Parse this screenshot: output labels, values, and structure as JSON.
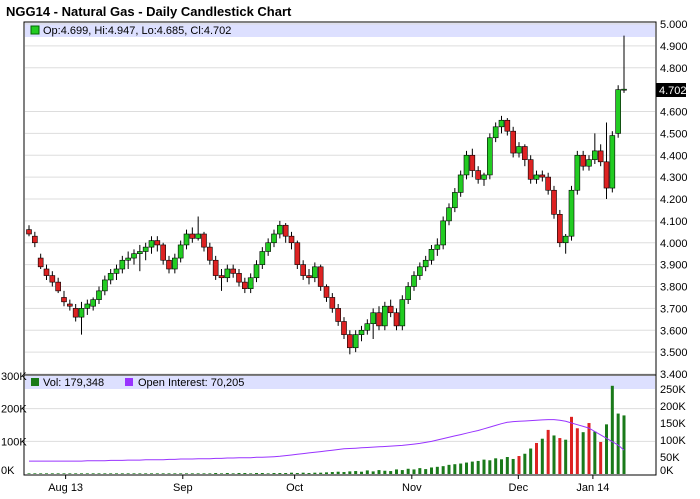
{
  "title": "NGG14 - Natural Gas - Daily Candlestick Chart",
  "price_legend": "Op:4.699, Hi:4.947, Lo:4.685, Cl:4.702",
  "last_price_label": "4.702",
  "volume_legend": "Vol: 179,348",
  "oi_legend": "Open Interest: 70,205",
  "colors": {
    "up": "#22cc22",
    "down": "#dd2222",
    "volume_up": "#1a7a1a",
    "open_interest": "#9933ff",
    "legend_band": "#dde0ff",
    "grid": "#dddddd"
  },
  "chart_data": [
    {
      "type": "candlestick",
      "title": "NGG14 - Natural Gas - Daily Candlestick Chart",
      "yticks": [
        "5.000",
        "4.900",
        "4.800",
        "4.702",
        "4.600",
        "4.500",
        "4.400",
        "4.300",
        "4.200",
        "4.100",
        "4.000",
        "3.900",
        "3.800",
        "3.700",
        "3.600",
        "3.500",
        "3.400"
      ],
      "ylim": [
        3.4,
        5.0
      ],
      "x_months": [
        "Aug 13",
        "Sep",
        "Oct",
        "Nov",
        "Dec",
        "Jan 14"
      ],
      "last": {
        "open": 4.699,
        "high": 4.947,
        "low": 4.685,
        "close": 4.702
      },
      "ohlc": [
        [
          4.06,
          4.08,
          4.03,
          4.04
        ],
        [
          4.03,
          4.05,
          3.98,
          4.0
        ],
        [
          3.93,
          3.95,
          3.88,
          3.89
        ],
        [
          3.88,
          3.9,
          3.83,
          3.85
        ],
        [
          3.85,
          3.87,
          3.8,
          3.82
        ],
        [
          3.82,
          3.84,
          3.77,
          3.78
        ],
        [
          3.75,
          3.78,
          3.71,
          3.73
        ],
        [
          3.72,
          3.74,
          3.69,
          3.71
        ],
        [
          3.7,
          3.72,
          3.64,
          3.66
        ],
        [
          3.66,
          3.73,
          3.58,
          3.7
        ],
        [
          3.7,
          3.74,
          3.67,
          3.72
        ],
        [
          3.71,
          3.75,
          3.69,
          3.74
        ],
        [
          3.74,
          3.8,
          3.72,
          3.78
        ],
        [
          3.78,
          3.85,
          3.76,
          3.83
        ],
        [
          3.83,
          3.88,
          3.81,
          3.86
        ],
        [
          3.86,
          3.9,
          3.83,
          3.88
        ],
        [
          3.88,
          3.94,
          3.86,
          3.92
        ],
        [
          3.92,
          3.96,
          3.88,
          3.93
        ],
        [
          3.93,
          3.97,
          3.9,
          3.95
        ],
        [
          3.95,
          3.99,
          3.87,
          3.96
        ],
        [
          3.96,
          4.0,
          3.92,
          3.98
        ],
        [
          3.98,
          4.03,
          3.95,
          4.01
        ],
        [
          4.01,
          4.03,
          3.96,
          3.99
        ],
        [
          3.99,
          4.0,
          3.9,
          3.92
        ],
        [
          3.92,
          3.94,
          3.86,
          3.88
        ],
        [
          3.88,
          3.95,
          3.86,
          3.93
        ],
        [
          3.93,
          4.01,
          3.91,
          3.99
        ],
        [
          3.99,
          4.06,
          3.97,
          4.04
        ],
        [
          4.04,
          4.07,
          4.0,
          4.02
        ],
        [
          4.02,
          4.12,
          4.01,
          4.04
        ],
        [
          4.04,
          4.05,
          3.96,
          3.98
        ],
        [
          3.98,
          4.0,
          3.9,
          3.92
        ],
        [
          3.92,
          3.94,
          3.83,
          3.85
        ],
        [
          3.85,
          3.88,
          3.78,
          3.84
        ],
        [
          3.84,
          3.9,
          3.82,
          3.88
        ],
        [
          3.88,
          3.9,
          3.84,
          3.86
        ],
        [
          3.86,
          3.88,
          3.8,
          3.82
        ],
        [
          3.82,
          3.84,
          3.77,
          3.79
        ],
        [
          3.79,
          3.86,
          3.77,
          3.84
        ],
        [
          3.84,
          3.92,
          3.82,
          3.9
        ],
        [
          3.9,
          3.98,
          3.88,
          3.96
        ],
        [
          3.96,
          4.02,
          3.94,
          4.0
        ],
        [
          4.0,
          4.06,
          3.98,
          4.04
        ],
        [
          4.04,
          4.1,
          4.02,
          4.08
        ],
        [
          4.08,
          4.09,
          4.0,
          4.03
        ],
        [
          4.03,
          4.05,
          3.97,
          4.0
        ],
        [
          4.0,
          4.01,
          3.88,
          3.9
        ],
        [
          3.9,
          3.92,
          3.83,
          3.85
        ],
        [
          3.85,
          3.88,
          3.81,
          3.84
        ],
        [
          3.84,
          3.91,
          3.82,
          3.89
        ],
        [
          3.89,
          3.9,
          3.78,
          3.8
        ],
        [
          3.8,
          3.81,
          3.73,
          3.75
        ],
        [
          3.75,
          3.77,
          3.68,
          3.7
        ],
        [
          3.7,
          3.72,
          3.62,
          3.64
        ],
        [
          3.64,
          3.66,
          3.56,
          3.58
        ],
        [
          3.58,
          3.6,
          3.49,
          3.52
        ],
        [
          3.52,
          3.6,
          3.5,
          3.58
        ],
        [
          3.58,
          3.62,
          3.55,
          3.6
        ],
        [
          3.6,
          3.65,
          3.58,
          3.63
        ],
        [
          3.63,
          3.7,
          3.56,
          3.68
        ],
        [
          3.68,
          3.71,
          3.6,
          3.62
        ],
        [
          3.62,
          3.73,
          3.6,
          3.71
        ],
        [
          3.71,
          3.74,
          3.66,
          3.68
        ],
        [
          3.68,
          3.7,
          3.6,
          3.62
        ],
        [
          3.62,
          3.76,
          3.6,
          3.74
        ],
        [
          3.74,
          3.82,
          3.72,
          3.8
        ],
        [
          3.8,
          3.87,
          3.78,
          3.85
        ],
        [
          3.85,
          3.91,
          3.83,
          3.89
        ],
        [
          3.89,
          3.94,
          3.87,
          3.92
        ],
        [
          3.92,
          3.99,
          3.9,
          3.97
        ],
        [
          3.97,
          4.02,
          3.94,
          3.99
        ],
        [
          3.99,
          4.12,
          3.97,
          4.1
        ],
        [
          4.1,
          4.18,
          4.08,
          4.16
        ],
        [
          4.16,
          4.25,
          4.14,
          4.23
        ],
        [
          4.23,
          4.33,
          4.21,
          4.31
        ],
        [
          4.31,
          4.42,
          4.29,
          4.4
        ],
        [
          4.4,
          4.43,
          4.3,
          4.33
        ],
        [
          4.33,
          4.35,
          4.27,
          4.29
        ],
        [
          4.29,
          4.32,
          4.26,
          4.31
        ],
        [
          4.31,
          4.5,
          4.29,
          4.48
        ],
        [
          4.48,
          4.55,
          4.46,
          4.53
        ],
        [
          4.53,
          4.58,
          4.5,
          4.56
        ],
        [
          4.56,
          4.57,
          4.49,
          4.51
        ],
        [
          4.51,
          4.53,
          4.39,
          4.41
        ],
        [
          4.41,
          4.46,
          4.39,
          4.44
        ],
        [
          4.44,
          4.45,
          4.35,
          4.38
        ],
        [
          4.38,
          4.4,
          4.27,
          4.29
        ],
        [
          4.29,
          4.33,
          4.27,
          4.31
        ],
        [
          4.31,
          4.33,
          4.28,
          4.3
        ],
        [
          4.3,
          4.32,
          4.22,
          4.24
        ],
        [
          4.24,
          4.26,
          4.11,
          4.13
        ],
        [
          4.13,
          4.15,
          3.98,
          4.0
        ],
        [
          4.0,
          4.04,
          3.95,
          4.03
        ],
        [
          4.03,
          4.26,
          4.01,
          4.24
        ],
        [
          4.24,
          4.42,
          4.22,
          4.4
        ],
        [
          4.4,
          4.42,
          4.33,
          4.35
        ],
        [
          4.35,
          4.4,
          4.33,
          4.38
        ],
        [
          4.38,
          4.5,
          4.36,
          4.42
        ],
        [
          4.42,
          4.45,
          4.35,
          4.37
        ],
        [
          4.37,
          4.55,
          4.2,
          4.25
        ],
        [
          4.25,
          4.51,
          4.23,
          4.49
        ],
        [
          4.5,
          4.72,
          4.48,
          4.7
        ],
        [
          4.699,
          4.947,
          4.685,
          4.702
        ]
      ]
    },
    {
      "type": "bar+line",
      "title": "Volume / Open Interest",
      "yticks_left": [
        "300K",
        "200K",
        "100K",
        "0K"
      ],
      "yticks_right": [
        "250K",
        "200K",
        "150K",
        "100K",
        "50K",
        "0K"
      ],
      "ylim_left": [
        0,
        300000
      ],
      "ylim_right": [
        0,
        250000
      ],
      "volume": [
        2000,
        2000,
        2000,
        2000,
        2000,
        2000,
        2000,
        2000,
        2000,
        2000,
        2000,
        2000,
        2000,
        2000,
        2000,
        2000,
        2000,
        2000,
        2000,
        2000,
        2000,
        2000,
        2000,
        2000,
        2000,
        2000,
        2000,
        2000,
        2000,
        2000,
        2000,
        2000,
        3000,
        2000,
        3000,
        2000,
        3000,
        3000,
        2000,
        3000,
        3000,
        2000,
        3000,
        3000,
        3000,
        4000,
        3000,
        4000,
        3000,
        4000,
        4000,
        5000,
        6000,
        7000,
        6000,
        8000,
        9000,
        7000,
        11000,
        8000,
        12000,
        10000,
        9000,
        14000,
        12000,
        16000,
        14000,
        18000,
        15000,
        20000,
        22000,
        24000,
        28000,
        30000,
        32000,
        35000,
        38000,
        40000,
        44000,
        42000,
        48000,
        45000,
        52000,
        46000,
        55000,
        62000,
        78000,
        95000,
        108000,
        135000,
        118000,
        110000,
        105000,
        175000,
        140000,
        128000,
        156000,
        130000,
        98000,
        152000,
        270000,
        185000,
        179348
      ],
      "volume_colors": [
        "g",
        "g",
        "g",
        "g",
        "g",
        "g",
        "g",
        "g",
        "g",
        "g",
        "g",
        "g",
        "g",
        "g",
        "g",
        "g",
        "g",
        "g",
        "g",
        "g",
        "g",
        "g",
        "g",
        "g",
        "g",
        "g",
        "g",
        "g",
        "g",
        "g",
        "g",
        "g",
        "g",
        "g",
        "g",
        "g",
        "g",
        "g",
        "g",
        "g",
        "g",
        "g",
        "g",
        "g",
        "g",
        "g",
        "g",
        "g",
        "g",
        "g",
        "g",
        "g",
        "g",
        "g",
        "g",
        "g",
        "g",
        "g",
        "g",
        "g",
        "g",
        "g",
        "g",
        "g",
        "g",
        "g",
        "g",
        "g",
        "g",
        "g",
        "g",
        "g",
        "g",
        "g",
        "g",
        "g",
        "g",
        "g",
        "g",
        "g",
        "g",
        "g",
        "g",
        "g",
        "r",
        "g",
        "g",
        "r",
        "g",
        "r",
        "g",
        "r",
        "g",
        "r",
        "r",
        "g",
        "r",
        "g",
        "r",
        "g",
        "g",
        "g",
        "g"
      ],
      "open_interest": [
        38000,
        38000,
        38000,
        38000,
        38000,
        38000,
        38000,
        38000,
        38000,
        38000,
        39000,
        39000,
        39000,
        39000,
        40000,
        40000,
        40000,
        41000,
        41000,
        41000,
        42000,
        42000,
        42000,
        42000,
        43000,
        43000,
        44000,
        44000,
        44000,
        45000,
        45000,
        45000,
        46000,
        46000,
        47000,
        47000,
        48000,
        48000,
        48000,
        49000,
        49000,
        50000,
        51000,
        52000,
        54000,
        56000,
        58000,
        60000,
        62000,
        64000,
        66000,
        68000,
        70000,
        72000,
        74000,
        75000,
        76000,
        77000,
        78000,
        79000,
        80000,
        81000,
        82000,
        83000,
        84000,
        86000,
        88000,
        90000,
        93000,
        96000,
        100000,
        104000,
        108000,
        112000,
        116000,
        120000,
        124000,
        128000,
        133000,
        138000,
        143000,
        148000,
        152000,
        154000,
        155000,
        156000,
        157000,
        158000,
        159000,
        160000,
        160000,
        158000,
        155000,
        150000,
        145000,
        140000,
        135000,
        125000,
        115000,
        105000,
        95000,
        85000,
        70205
      ]
    }
  ]
}
